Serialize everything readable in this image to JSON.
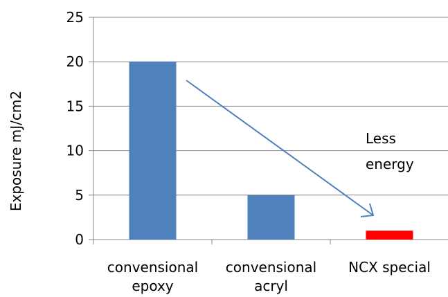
{
  "chart_data": {
    "type": "bar",
    "title": "",
    "xlabel": "",
    "ylabel": "Exposure mJ/cm2",
    "ylim": [
      0,
      25
    ],
    "yticks": [
      0,
      5,
      10,
      15,
      20,
      25
    ],
    "grid": true,
    "legend": "none",
    "categories": [
      [
        "convensional",
        "epoxy"
      ],
      [
        "convensional",
        "acryl"
      ],
      [
        "NCX special"
      ]
    ],
    "values": [
      20,
      5,
      1
    ],
    "colors": [
      "#4F81BD",
      "#4F81BD",
      "#FF0000"
    ],
    "annotation": {
      "lines": [
        "Less",
        "energy"
      ],
      "arrow_color": "#4F81BD"
    }
  }
}
